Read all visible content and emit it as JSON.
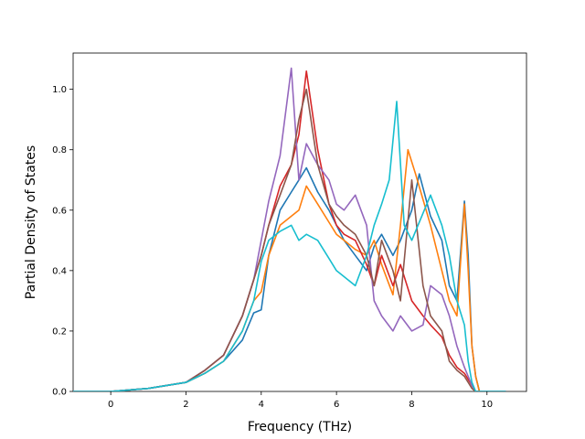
{
  "chart_data": {
    "type": "line",
    "title": "",
    "xlabel": "Frequency (THz)",
    "ylabel": "Partial Density of States",
    "xlim": [
      -1.0,
      11.05
    ],
    "ylim": [
      0.0,
      1.12
    ],
    "xticks": [
      0,
      2,
      4,
      6,
      8,
      10
    ],
    "yticks": [
      0.0,
      0.2,
      0.4,
      0.6,
      0.8,
      1.0
    ],
    "xtick_labels": [
      "0",
      "2",
      "4",
      "6",
      "8",
      "10"
    ],
    "ytick_labels": [
      "0.0",
      "0.2",
      "0.4",
      "0.6",
      "0.8",
      "1.0"
    ],
    "grid": false,
    "legend": "none",
    "series": [
      {
        "color": "#1f77b4",
        "x": [
          -1.0,
          0.0,
          1.0,
          2.0,
          2.5,
          3.0,
          3.5,
          3.8,
          4.0,
          4.2,
          4.5,
          4.8,
          5.0,
          5.2,
          5.5,
          5.8,
          6.0,
          6.2,
          6.5,
          6.8,
          7.0,
          7.2,
          7.5,
          7.7,
          8.0,
          8.2,
          8.5,
          8.8,
          9.0,
          9.2,
          9.4,
          9.5,
          9.6,
          9.7,
          9.8,
          10.5
        ],
        "y": [
          0.0,
          0.0,
          0.01,
          0.03,
          0.06,
          0.1,
          0.17,
          0.26,
          0.27,
          0.45,
          0.6,
          0.66,
          0.7,
          0.74,
          0.66,
          0.6,
          0.55,
          0.5,
          0.45,
          0.4,
          0.48,
          0.52,
          0.45,
          0.5,
          0.6,
          0.72,
          0.58,
          0.5,
          0.35,
          0.3,
          0.63,
          0.45,
          0.15,
          0.05,
          0.0,
          0.0
        ]
      },
      {
        "color": "#ff7f0e",
        "x": [
          -1.0,
          0.0,
          1.0,
          2.0,
          2.5,
          3.0,
          3.5,
          3.8,
          4.0,
          4.2,
          4.5,
          4.8,
          5.0,
          5.2,
          5.5,
          5.8,
          6.0,
          6.2,
          6.5,
          6.8,
          7.0,
          7.2,
          7.5,
          7.7,
          7.9,
          8.1,
          8.5,
          8.8,
          9.0,
          9.2,
          9.4,
          9.5,
          9.6,
          9.7,
          9.8,
          10.5
        ],
        "y": [
          0.0,
          0.0,
          0.01,
          0.03,
          0.06,
          0.1,
          0.2,
          0.3,
          0.33,
          0.45,
          0.55,
          0.58,
          0.6,
          0.68,
          0.62,
          0.56,
          0.52,
          0.5,
          0.47,
          0.45,
          0.5,
          0.42,
          0.32,
          0.55,
          0.8,
          0.72,
          0.55,
          0.4,
          0.3,
          0.25,
          0.62,
          0.4,
          0.15,
          0.05,
          0.0,
          0.0
        ]
      },
      {
        "color": "#d62728",
        "x": [
          -1.0,
          0.0,
          1.0,
          2.0,
          2.5,
          3.0,
          3.5,
          3.8,
          4.0,
          4.2,
          4.5,
          4.8,
          5.0,
          5.2,
          5.5,
          5.8,
          6.0,
          6.2,
          6.5,
          6.8,
          7.0,
          7.2,
          7.5,
          7.7,
          8.0,
          8.3,
          8.5,
          8.8,
          9.0,
          9.2,
          9.4,
          9.5,
          9.6,
          9.7,
          9.8,
          10.5
        ],
        "y": [
          0.0,
          0.0,
          0.01,
          0.03,
          0.07,
          0.12,
          0.25,
          0.37,
          0.45,
          0.55,
          0.68,
          0.75,
          0.85,
          1.06,
          0.8,
          0.62,
          0.55,
          0.52,
          0.5,
          0.42,
          0.35,
          0.45,
          0.35,
          0.42,
          0.3,
          0.25,
          0.22,
          0.18,
          0.12,
          0.08,
          0.06,
          0.04,
          0.02,
          0.0,
          0.0,
          0.0
        ]
      },
      {
        "color": "#9467bd",
        "x": [
          -1.0,
          0.0,
          1.0,
          2.0,
          2.5,
          3.0,
          3.5,
          3.8,
          4.0,
          4.2,
          4.5,
          4.8,
          5.0,
          5.2,
          5.5,
          5.8,
          6.0,
          6.2,
          6.5,
          6.8,
          7.0,
          7.2,
          7.5,
          7.7,
          8.0,
          8.3,
          8.5,
          8.8,
          9.0,
          9.2,
          9.4,
          9.5,
          9.6,
          9.7,
          9.8,
          10.5
        ],
        "y": [
          0.0,
          0.0,
          0.01,
          0.03,
          0.07,
          0.12,
          0.25,
          0.37,
          0.5,
          0.63,
          0.78,
          1.07,
          0.7,
          0.82,
          0.75,
          0.7,
          0.62,
          0.6,
          0.65,
          0.55,
          0.3,
          0.25,
          0.2,
          0.25,
          0.2,
          0.22,
          0.35,
          0.32,
          0.25,
          0.15,
          0.08,
          0.05,
          0.02,
          0.0,
          0.0,
          0.0
        ]
      },
      {
        "color": "#8c564b",
        "x": [
          -1.0,
          0.0,
          1.0,
          2.0,
          2.5,
          3.0,
          3.5,
          3.8,
          4.0,
          4.2,
          4.5,
          4.8,
          5.0,
          5.2,
          5.5,
          5.8,
          6.0,
          6.2,
          6.5,
          6.8,
          7.0,
          7.2,
          7.5,
          7.7,
          8.0,
          8.3,
          8.5,
          8.8,
          9.0,
          9.2,
          9.4,
          9.5,
          9.6,
          9.7,
          9.8,
          10.5
        ],
        "y": [
          0.0,
          0.0,
          0.01,
          0.03,
          0.07,
          0.12,
          0.25,
          0.37,
          0.45,
          0.55,
          0.65,
          0.75,
          0.9,
          1.0,
          0.75,
          0.62,
          0.58,
          0.55,
          0.52,
          0.45,
          0.35,
          0.5,
          0.4,
          0.3,
          0.7,
          0.35,
          0.25,
          0.2,
          0.1,
          0.07,
          0.05,
          0.03,
          0.01,
          0.0,
          0.0,
          0.0
        ]
      },
      {
        "color": "#17becf",
        "x": [
          -1.0,
          0.0,
          1.0,
          2.0,
          2.5,
          3.0,
          3.5,
          3.8,
          4.0,
          4.2,
          4.5,
          4.8,
          5.0,
          5.2,
          5.5,
          5.8,
          6.0,
          6.2,
          6.5,
          6.8,
          7.0,
          7.2,
          7.4,
          7.6,
          7.8,
          8.0,
          8.5,
          8.8,
          9.0,
          9.2,
          9.4,
          9.5,
          9.6,
          9.7,
          9.8,
          10.5
        ],
        "y": [
          0.0,
          0.0,
          0.01,
          0.03,
          0.06,
          0.1,
          0.2,
          0.3,
          0.43,
          0.5,
          0.53,
          0.55,
          0.5,
          0.52,
          0.5,
          0.44,
          0.4,
          0.38,
          0.35,
          0.45,
          0.55,
          0.62,
          0.7,
          0.96,
          0.55,
          0.5,
          0.65,
          0.55,
          0.45,
          0.3,
          0.22,
          0.1,
          0.03,
          0.0,
          0.0,
          0.0
        ]
      }
    ]
  }
}
